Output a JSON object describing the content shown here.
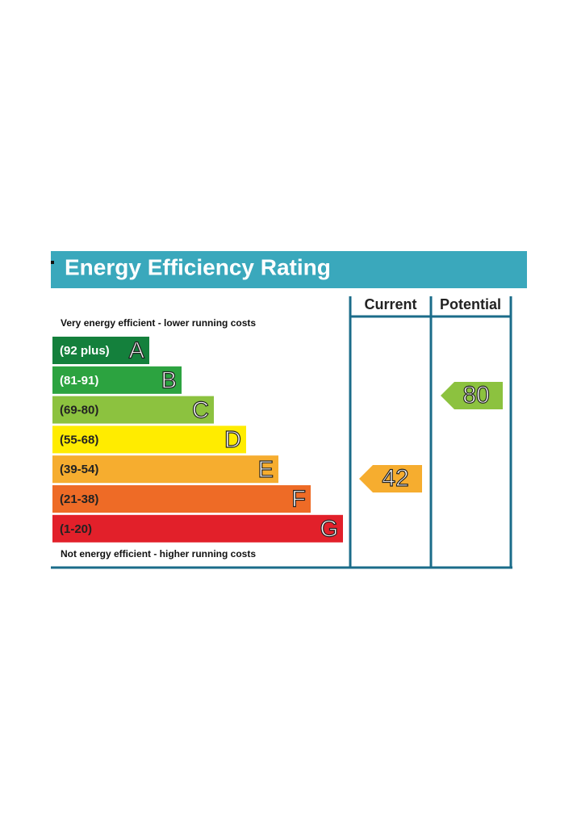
{
  "title": "Energy Efficiency Rating",
  "columns": [
    "Current",
    "Potential"
  ],
  "top_note": "Very energy efficient - lower running costs",
  "bottom_note": "Not energy efficient - higher running costs",
  "bands": [
    {
      "range": "(92 plus)",
      "letter": "A",
      "color": "#14803c"
    },
    {
      "range": "(81-91)",
      "letter": "B",
      "color": "#2ca340"
    },
    {
      "range": "(69-80)",
      "letter": "C",
      "color": "#8cc23f"
    },
    {
      "range": "(55-68)",
      "letter": "D",
      "color": "#ffec00"
    },
    {
      "range": "(39-54)",
      "letter": "E",
      "color": "#f6ad2f"
    },
    {
      "range": "(21-38)",
      "letter": "F",
      "color": "#ee6b26"
    },
    {
      "range": "(1-20)",
      "letter": "G",
      "color": "#e2202a"
    }
  ],
  "current": {
    "value": 42,
    "color": "#f6ad2f"
  },
  "potential": {
    "value": 80,
    "color": "#8cc23f"
  }
}
